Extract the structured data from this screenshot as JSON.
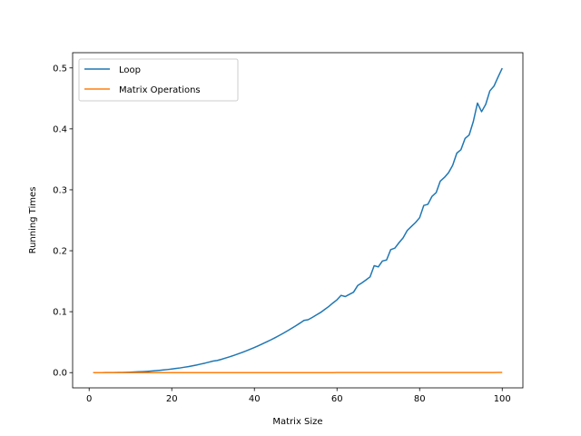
{
  "chart_data": {
    "type": "line",
    "title": "",
    "xlabel": "Matrix Size",
    "ylabel": "Running Times",
    "xlim": [
      -4,
      105
    ],
    "ylim": [
      -0.025,
      0.525
    ],
    "xticks": [
      0,
      20,
      40,
      60,
      80,
      100
    ],
    "xtick_labels": [
      "0",
      "20",
      "40",
      "60",
      "80",
      "100"
    ],
    "yticks": [
      0.0,
      0.1,
      0.2,
      0.3,
      0.4,
      0.5
    ],
    "ytick_labels": [
      "0.0",
      "0.1",
      "0.2",
      "0.3",
      "0.4",
      "0.5"
    ],
    "grid": false,
    "legend_position": "upper-left",
    "x": [
      1,
      2,
      3,
      4,
      5,
      6,
      7,
      8,
      9,
      10,
      11,
      12,
      13,
      14,
      15,
      16,
      17,
      18,
      19,
      20,
      21,
      22,
      23,
      24,
      25,
      26,
      27,
      28,
      29,
      30,
      31,
      32,
      33,
      34,
      35,
      36,
      37,
      38,
      39,
      40,
      41,
      42,
      43,
      44,
      45,
      46,
      47,
      48,
      49,
      50,
      51,
      52,
      53,
      54,
      55,
      56,
      57,
      58,
      59,
      60,
      61,
      62,
      63,
      64,
      65,
      66,
      67,
      68,
      69,
      70,
      71,
      72,
      73,
      74,
      75,
      76,
      77,
      78,
      79,
      80,
      81,
      82,
      83,
      84,
      85,
      86,
      87,
      88,
      89,
      90,
      91,
      92,
      93,
      94,
      95,
      96,
      97,
      98,
      99,
      100
    ],
    "series": [
      {
        "name": "Loop",
        "color": "#1f77b4",
        "values": [
          0.0,
          0.0,
          0.0,
          0.0001,
          0.0001,
          0.0002,
          0.0003,
          0.0004,
          0.0006,
          0.0008,
          0.0011,
          0.0014,
          0.0017,
          0.0021,
          0.0026,
          0.0031,
          0.0037,
          0.0044,
          0.0051,
          0.0059,
          0.0068,
          0.0077,
          0.0088,
          0.0099,
          0.0112,
          0.0125,
          0.014,
          0.0155,
          0.0172,
          0.019,
          0.0199,
          0.0218,
          0.0239,
          0.026,
          0.0282,
          0.0306,
          0.0331,
          0.0357,
          0.0384,
          0.0412,
          0.0442,
          0.0473,
          0.0505,
          0.0538,
          0.0573,
          0.0609,
          0.0646,
          0.0685,
          0.0726,
          0.0768,
          0.0811,
          0.0856,
          0.0868,
          0.0905,
          0.0946,
          0.0986,
          0.1035,
          0.1085,
          0.1142,
          0.1195,
          0.1268,
          0.1248,
          0.1284,
          0.132,
          0.1428,
          0.1472,
          0.152,
          0.1571,
          0.1755,
          0.1735,
          0.1832,
          0.1848,
          0.2018,
          0.2042,
          0.2131,
          0.2211,
          0.2332,
          0.2398,
          0.2463,
          0.2542,
          0.2743,
          0.2762,
          0.2893,
          0.2953,
          0.3142,
          0.3203,
          0.3281,
          0.3402,
          0.3601,
          0.3658,
          0.3842,
          0.3901,
          0.4121,
          0.4423,
          0.4282,
          0.4402,
          0.4623,
          0.4702,
          0.4853,
          0.4995
        ]
      },
      {
        "name": "Matrix Operations",
        "color": "#ff7f0e",
        "values": [
          0.0,
          0.0,
          0.0,
          0.0,
          0.0,
          0.0,
          0.0,
          0.0,
          0.0,
          0.0,
          0.0,
          0.0,
          0.0,
          0.0,
          0.0,
          0.0,
          0.0,
          0.0,
          0.0,
          0.0,
          0.0,
          0.0,
          0.0,
          0.0,
          0.0,
          0.0,
          0.0,
          0.0,
          0.0,
          0.0,
          0.0,
          0.0,
          0.0,
          0.0,
          0.0,
          0.0,
          0.0,
          0.0,
          0.0,
          0.0,
          0.0,
          0.0,
          0.0,
          0.0,
          0.0,
          0.0,
          0.0,
          0.0,
          0.0,
          0.0,
          0.0,
          0.0,
          0.0,
          0.0,
          0.0,
          0.0,
          0.0,
          0.0,
          0.0,
          0.0001,
          0.0001,
          0.0001,
          0.0001,
          0.0001,
          0.0001,
          0.0001,
          0.0001,
          0.0001,
          0.0001,
          0.0001,
          0.0001,
          0.0001,
          0.0001,
          0.0001,
          0.0001,
          0.0001,
          0.0001,
          0.0001,
          0.0001,
          0.0001,
          0.0002,
          0.0002,
          0.0002,
          0.0002,
          0.0002,
          0.0002,
          0.0002,
          0.0002,
          0.0002,
          0.0002,
          0.0002,
          0.0002,
          0.0002,
          0.0002,
          0.0002,
          0.0002,
          0.0002,
          0.0002,
          0.0003,
          0.0003
        ]
      }
    ]
  }
}
